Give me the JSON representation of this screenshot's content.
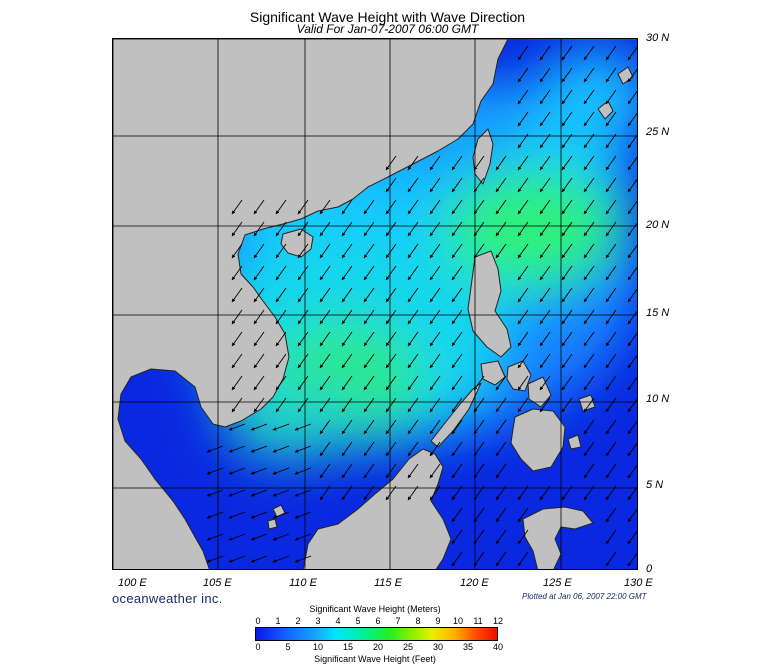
{
  "header": {
    "title": "Significant Wave Height with Wave Direction",
    "subtitle": "Valid For Jan-07-2007 06:00 GMT"
  },
  "map": {
    "lat_labels": [
      "30 N",
      "25 N",
      "20 N",
      "15 N",
      "10 N",
      "5 N",
      "0"
    ],
    "lon_labels": [
      "100 E",
      "105 E",
      "110 E",
      "115 E",
      "120 E",
      "125 E",
      "130 E"
    ],
    "lat_range": [
      0,
      30
    ],
    "lon_range": [
      100,
      130
    ],
    "land_color": "#c0c0c0",
    "ocean_base_color": "#0a28e0",
    "dominant_wave_direction": "from northeast toward southwest"
  },
  "branding": {
    "company": "oceanweather inc.",
    "plotted_at": "Plotted at Jan 06, 2007 22:00 GMT"
  },
  "legend": {
    "title_meters": "Significant Wave Height (Meters)",
    "title_feet": "Significant Wave Height (Feet)",
    "meters_ticks": [
      "0",
      "1",
      "2",
      "3",
      "4",
      "5",
      "6",
      "7",
      "8",
      "9",
      "10",
      "11",
      "12"
    ],
    "feet_ticks": [
      "0",
      "5",
      "10",
      "15",
      "20",
      "25",
      "30",
      "35",
      "40"
    ],
    "colors": [
      "#0a18e8",
      "#1060ff",
      "#17a6ff",
      "#00e6ff",
      "#00f0a0",
      "#22ee22",
      "#8ef000",
      "#e8f000",
      "#ffb400",
      "#ff5000",
      "#ee0c00"
    ]
  }
}
